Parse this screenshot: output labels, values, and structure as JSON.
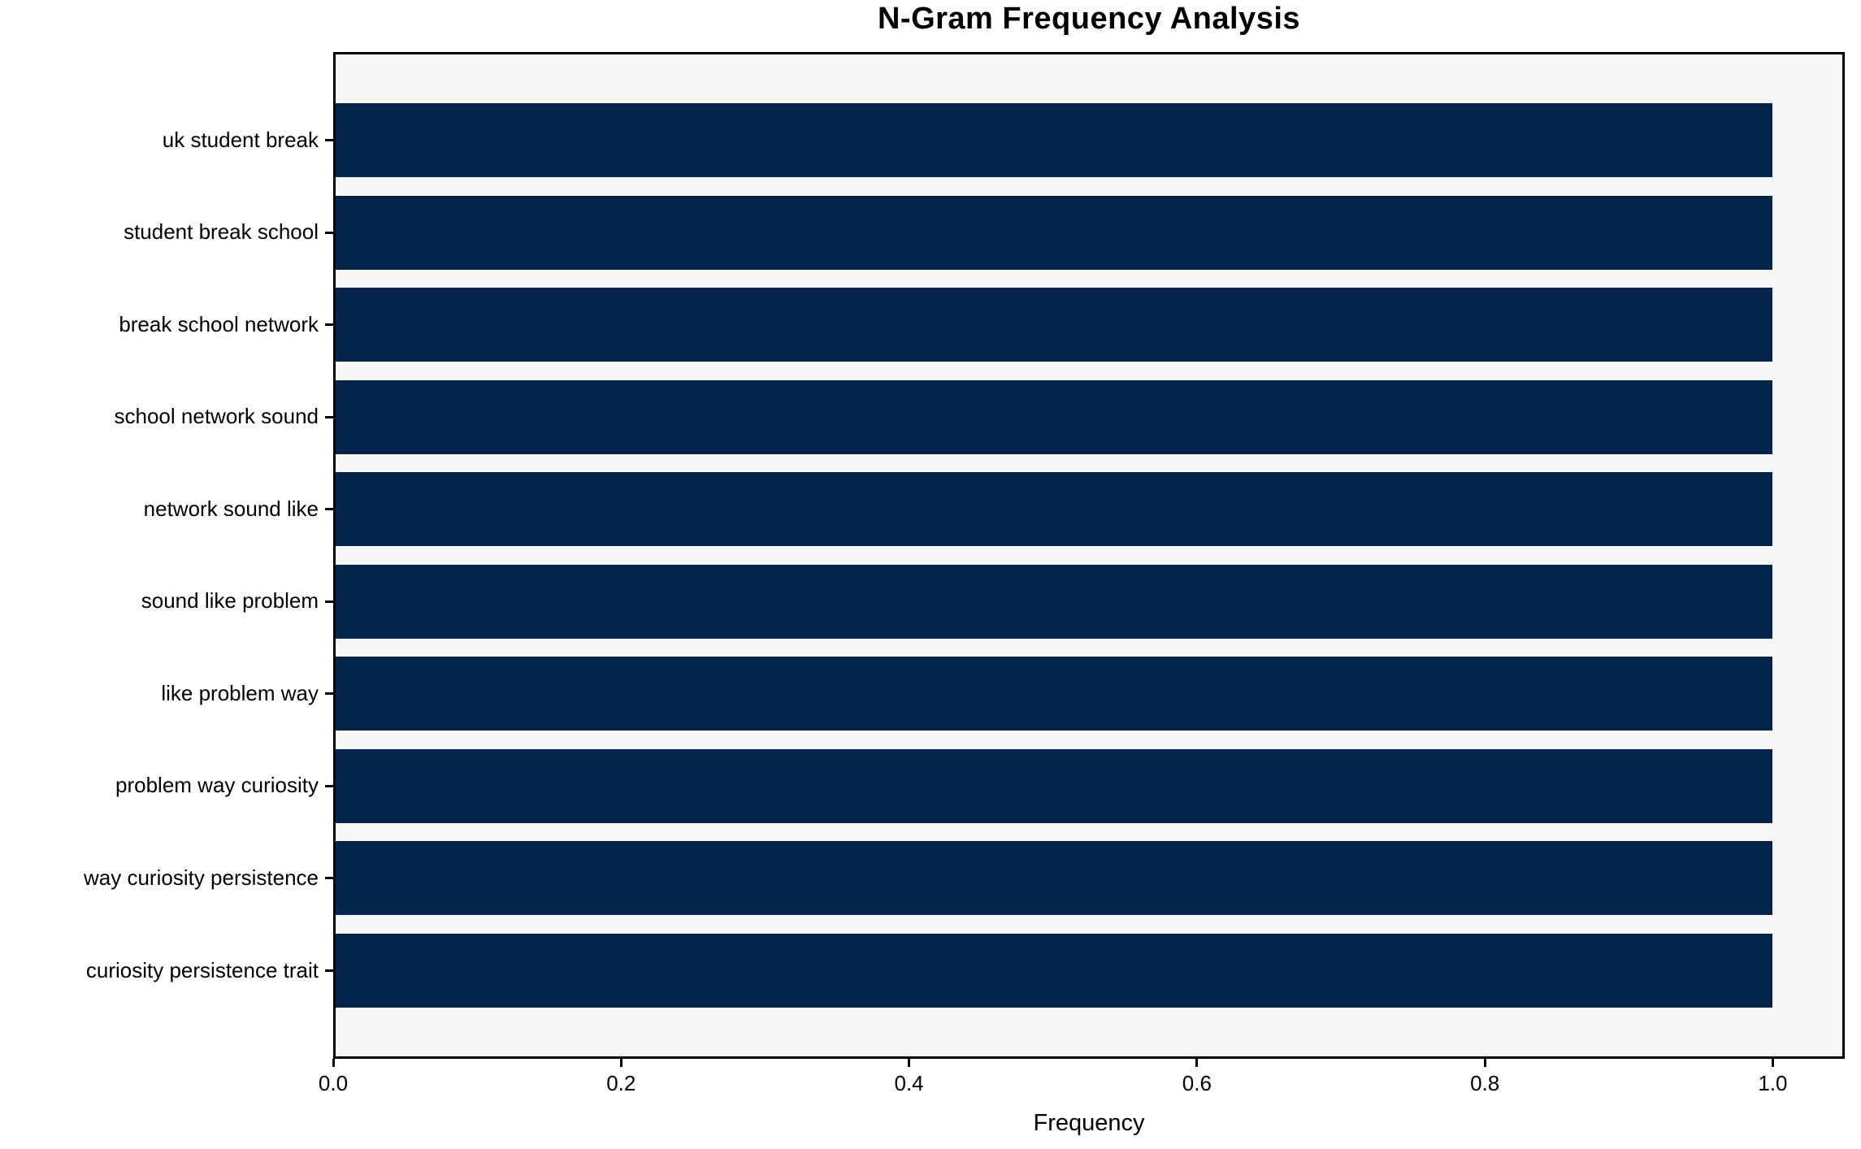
{
  "chart_data": {
    "type": "bar",
    "orientation": "horizontal",
    "title": "N-Gram Frequency Analysis",
    "xlabel": "Frequency",
    "ylabel": "",
    "categories": [
      "uk student break",
      "student break school",
      "break school network",
      "school network sound",
      "network sound like",
      "sound like problem",
      "like problem way",
      "problem way curiosity",
      "way curiosity persistence",
      "curiosity persistence trait"
    ],
    "values": [
      1.0,
      1.0,
      1.0,
      1.0,
      1.0,
      1.0,
      1.0,
      1.0,
      1.0,
      1.0
    ],
    "xlim": [
      0,
      1.05
    ],
    "xticks": [
      0.0,
      0.2,
      0.4,
      0.6,
      0.8,
      1.0
    ],
    "xtick_labels": [
      "0.0",
      "0.2",
      "0.4",
      "0.6",
      "0.8",
      "1.0"
    ],
    "grid": false,
    "legend_position": "none",
    "colors": {
      "bar": "#02254d",
      "plot_background": "#f6f6f7",
      "figure_background": "#ffffff",
      "axis": "#000000",
      "text": "#000000"
    }
  }
}
